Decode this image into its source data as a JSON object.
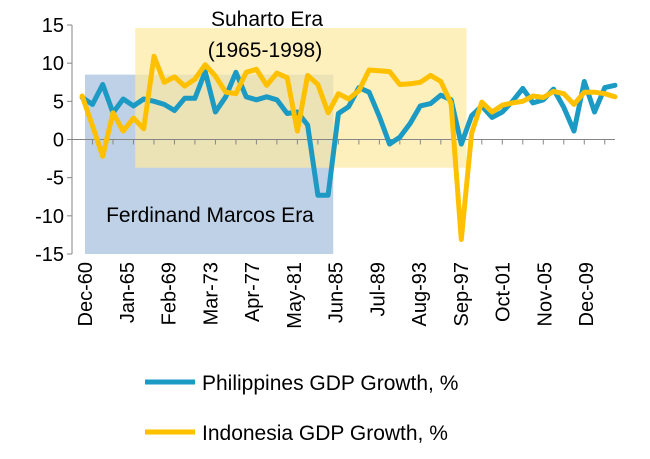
{
  "chart_data": {
    "type": "line",
    "ylim": [
      -15,
      15
    ],
    "yticks": [
      -15,
      -10,
      -5,
      0,
      5,
      10,
      15
    ],
    "x": [
      1960,
      1961,
      1962,
      1963,
      1964,
      1965,
      1966,
      1967,
      1968,
      1969,
      1970,
      1971,
      1972,
      1973,
      1974,
      1975,
      1976,
      1977,
      1978,
      1979,
      1980,
      1981,
      1982,
      1983,
      1984,
      1985,
      1986,
      1987,
      1988,
      1989,
      1990,
      1991,
      1992,
      1993,
      1994,
      1995,
      1996,
      1997,
      1998,
      1999,
      2000,
      2001,
      2002,
      2003,
      2004,
      2005,
      2006,
      2007,
      2008,
      2009,
      2010,
      2011,
      2012,
      2013
    ],
    "xticks": [
      "Dec-60",
      "Jan-65",
      "Feb-69",
      "Mar-73",
      "Apr-77",
      "May-81",
      "Jun-85",
      "Jul-89",
      "Aug-93",
      "Sep-97",
      "Oct-01",
      "Nov-05",
      "Dec-09"
    ],
    "series": [
      {
        "name": "Philippines GDP Growth, %",
        "color": "#1b9ac4",
        "values": [
          null,
          5.5,
          4.6,
          7.2,
          3.5,
          5.3,
          4.4,
          5.3,
          5.0,
          4.6,
          3.8,
          5.4,
          5.4,
          8.9,
          3.6,
          5.6,
          8.8,
          5.6,
          5.2,
          5.6,
          5.2,
          3.4,
          3.6,
          1.9,
          -7.3,
          -7.3,
          3.4,
          4.3,
          6.8,
          6.2,
          3.0,
          -0.6,
          0.3,
          2.1,
          4.4,
          4.7,
          5.8,
          5.2,
          -0.6,
          3.1,
          4.4,
          2.9,
          3.6,
          5.0,
          6.7,
          4.8,
          5.2,
          6.6,
          4.2,
          1.1,
          7.6,
          3.6,
          6.8,
          7.1
        ]
      },
      {
        "name": "Indonesia GDP Growth, %",
        "color": "#ffc000",
        "values": [
          null,
          5.7,
          1.8,
          -2.2,
          3.5,
          1.1,
          2.8,
          1.4,
          10.9,
          7.5,
          8.2,
          7.0,
          7.9,
          9.8,
          8.3,
          6.2,
          6.0,
          8.8,
          9.2,
          7.1,
          8.7,
          8.1,
          1.1,
          8.4,
          7.2,
          3.5,
          6.0,
          5.3,
          6.4,
          9.1,
          9.0,
          8.9,
          7.2,
          7.3,
          7.5,
          8.4,
          7.6,
          4.7,
          -13.1,
          0.8,
          4.9,
          3.6,
          4.5,
          4.8,
          5.0,
          5.7,
          5.5,
          6.3,
          6.0,
          4.6,
          6.2,
          6.2,
          6.0,
          5.6
        ]
      }
    ],
    "annotations": {
      "suharto_title": "Suharto Era",
      "suharto_years": "(1965-1998)",
      "marcos": "Ferdinand Marcos Era"
    },
    "regions": {
      "marcos": {
        "x_start": 1960,
        "x_end": 1985.5,
        "y_start": -15,
        "y_end": 8.5,
        "color": "#b8cce4"
      },
      "suharto": {
        "x_start": 1965,
        "x_end": 1998.5,
        "y_start": -3.7,
        "y_end": 14.6,
        "color": "#fde9a0"
      }
    },
    "legend_position": "bottom"
  }
}
